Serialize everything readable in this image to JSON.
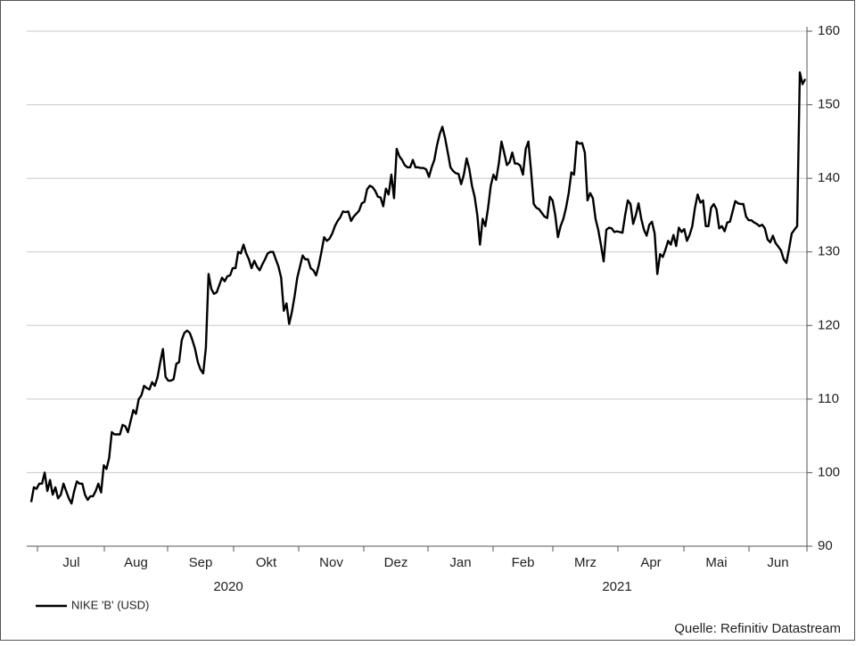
{
  "chart_data": {
    "type": "line",
    "series": [
      {
        "name": "NIKE 'B' (USD)",
        "color": "#000000",
        "values": [
          96,
          98,
          97.8,
          98.5,
          98.5,
          100,
          97.5,
          99,
          97,
          98,
          96.5,
          97,
          98.5,
          97.5,
          96.5,
          95.8,
          97.5,
          98.8,
          98.5,
          98.5,
          97,
          96.3,
          96.8,
          96.8,
          97.5,
          98.5,
          97.3,
          101,
          100.5,
          102,
          105.5,
          105.2,
          105.2,
          105.2,
          106.5,
          106.3,
          105.5,
          107,
          108.5,
          108,
          110,
          110.5,
          111.8,
          111.5,
          111.3,
          112.3,
          111.8,
          113,
          115,
          116.8,
          113,
          112.5,
          112.5,
          112.7,
          114.8,
          115,
          118,
          119,
          119.3,
          119,
          118,
          116.8,
          115,
          114,
          113.5,
          117,
          127,
          125,
          124.3,
          124.5,
          125.5,
          126.5,
          126,
          126.7,
          126.8,
          127.8,
          127.8,
          130,
          129.8,
          131,
          129.8,
          129,
          127.8,
          128.8,
          128,
          127.5,
          128.3,
          129,
          129.8,
          130,
          130,
          129,
          128,
          126.5,
          122,
          123,
          120.2,
          121.8,
          124,
          126.5,
          128,
          129.5,
          129,
          129,
          127.8,
          127.5,
          126.8,
          128.2,
          130,
          132,
          131.5,
          131.8,
          132.5,
          133.5,
          134.2,
          134.7,
          135.5,
          135.4,
          135.5,
          134.2,
          134.8,
          135.2,
          135.6,
          136.6,
          136.8,
          138.5,
          139,
          138.8,
          138.3,
          137.5,
          137.4,
          136.2,
          138.6,
          137.8,
          140.5,
          137.3,
          144,
          143,
          142.5,
          141.8,
          141.5,
          141.5,
          142.5,
          141.5,
          141.5,
          141.4,
          141.4,
          141.2,
          140.2,
          141.5,
          142.5,
          144.5,
          146,
          147,
          145.5,
          143.5,
          141.5,
          141,
          140.7,
          140.6,
          139.2,
          140.5,
          142.7,
          141.3,
          139,
          137.5,
          135,
          131,
          134.5,
          133.5,
          136,
          139,
          140.5,
          139.8,
          142,
          145,
          143.5,
          141.8,
          142.2,
          143.5,
          142,
          142,
          141.7,
          140.5,
          144,
          145,
          141,
          136.5,
          136,
          135.8,
          135.3,
          134.8,
          134.6,
          137.5,
          137,
          135,
          132,
          133.5,
          134.5,
          136,
          138,
          140.8,
          140.5,
          145,
          144.7,
          144.8,
          143.5,
          137,
          138,
          137.3,
          134.5,
          133,
          131,
          128.7,
          133,
          133.3,
          133.2,
          132.7,
          132.8,
          132.7,
          132.6,
          135,
          137,
          136.5,
          133.8,
          135,
          136.6,
          134.5,
          133,
          132.2,
          133.7,
          134.1,
          132.5,
          127,
          129.7,
          129.3,
          130.3,
          131.5,
          131,
          132.3,
          130.8,
          133.3,
          132.7,
          133.1,
          131.5,
          132.3,
          133.5,
          136,
          137.8,
          136.7,
          137,
          133.5,
          133.5,
          136,
          136.5,
          135.8,
          133.2,
          133.5,
          132.8,
          134,
          134.1,
          135.5,
          136.9,
          136.6,
          136.5,
          136.5,
          134.8,
          134.3,
          134.3,
          134,
          133.8,
          133.5,
          133.7,
          133.2,
          131.7,
          131.3,
          132.2,
          131.2,
          130.7,
          130.2,
          129,
          128.5,
          130.4,
          132.5,
          133,
          133.5,
          154.4,
          152.8,
          153.5
        ]
      }
    ],
    "month_labels": [
      "Jul",
      "Aug",
      "Sep",
      "Okt",
      "Nov",
      "Dez",
      "Jan",
      "Feb",
      "Mrz",
      "Apr",
      "Mai",
      "Jun"
    ],
    "year_labels": [
      "2020",
      "2021"
    ],
    "ylim": [
      90,
      160
    ],
    "yticks": [
      90,
      100,
      110,
      120,
      130,
      140,
      150,
      160
    ],
    "grid": true,
    "legend": "lower left",
    "source": "Quelle: Refinitiv Datastream"
  }
}
